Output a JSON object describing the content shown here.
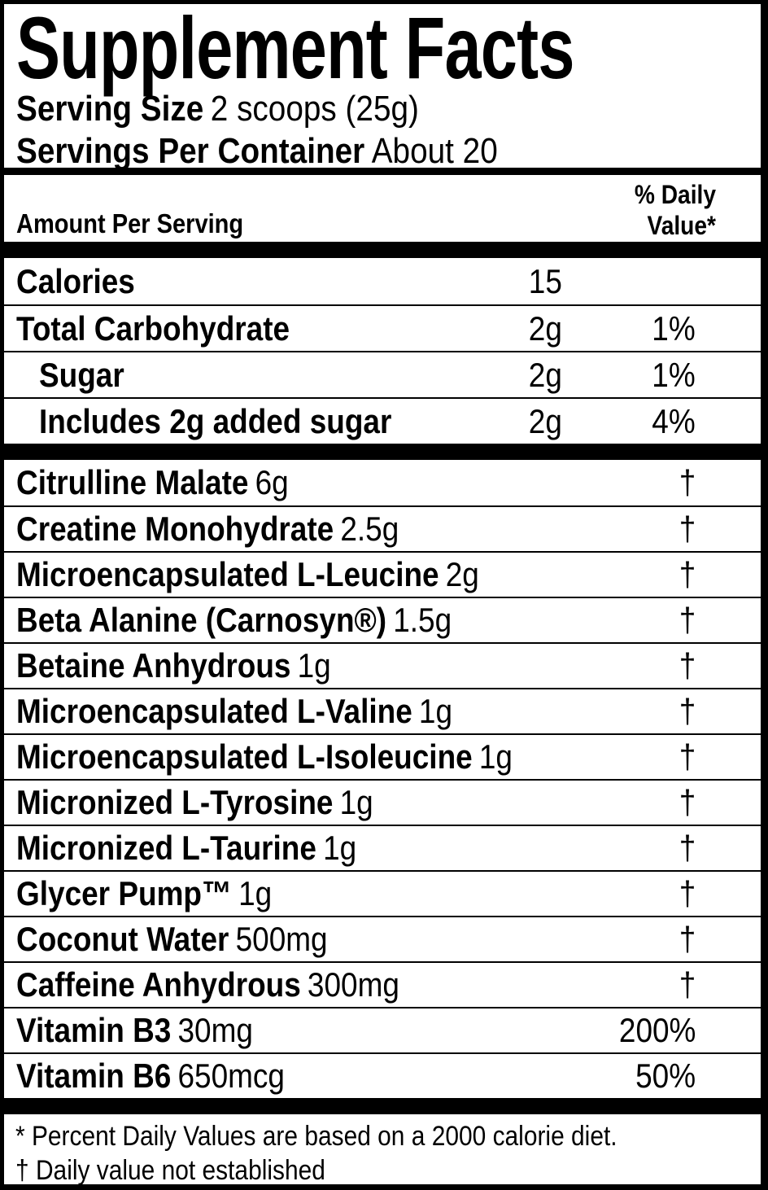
{
  "label": {
    "title": "Supplement Facts",
    "serving_size_label": "Serving Size",
    "serving_size_value": "2 scoops (25g)",
    "servings_per_container_label": "Servings Per Container",
    "servings_per_container_value": "About 20",
    "amount_per_serving_header": "Amount Per Serving",
    "daily_value_header": "% Daily Value*",
    "nutrition_rows": [
      {
        "name": "Calories",
        "amount": "15",
        "dv": ""
      },
      {
        "name": "Total Carbohydrate",
        "amount": "2g",
        "dv": "1%"
      },
      {
        "name": "Sugar",
        "amount": "2g",
        "dv": "1%"
      },
      {
        "name": "Includes 2g added sugar",
        "amount": "2g",
        "dv": "4%"
      }
    ],
    "ingredient_rows": [
      {
        "name": "Citrulline Malate",
        "amount": "6g",
        "dv": "†"
      },
      {
        "name": "Creatine Monohydrate",
        "amount": "2.5g",
        "dv": "†"
      },
      {
        "name": "Microencapsulated L-Leucine",
        "amount": "2g",
        "dv": "†"
      },
      {
        "name": "Beta Alanine (Carnosyn®)",
        "amount": "1.5g",
        "dv": "†"
      },
      {
        "name": "Betaine Anhydrous",
        "amount": "1g",
        "dv": "†"
      },
      {
        "name": "Microencapsulated L-Valine",
        "amount": "1g",
        "dv": "†"
      },
      {
        "name": "Microencapsulated L-Isoleucine",
        "amount": "1g",
        "dv": "†"
      },
      {
        "name": "Micronized L-Tyrosine",
        "amount": "1g",
        "dv": "†"
      },
      {
        "name": "Micronized L-Taurine",
        "amount": "1g",
        "dv": "†"
      },
      {
        "name": "Glycer Pump™",
        "amount": "1g",
        "dv": "†"
      },
      {
        "name": "Coconut Water",
        "amount": "500mg",
        "dv": "†"
      },
      {
        "name": "Caffeine Anhydrous",
        "amount": "300mg",
        "dv": "†"
      },
      {
        "name": "Vitamin B3",
        "amount": "30mg",
        "dv": "200%"
      },
      {
        "name": "Vitamin B6",
        "amount": "650mcg",
        "dv": "50%"
      }
    ],
    "footnotes": {
      "daily_values": "* Percent Daily Values are based on a 2000 calorie diet.",
      "not_established": "† Daily value not established"
    },
    "colors": {
      "border": "#000000",
      "background": "#ffffff",
      "text": "#000000"
    }
  }
}
